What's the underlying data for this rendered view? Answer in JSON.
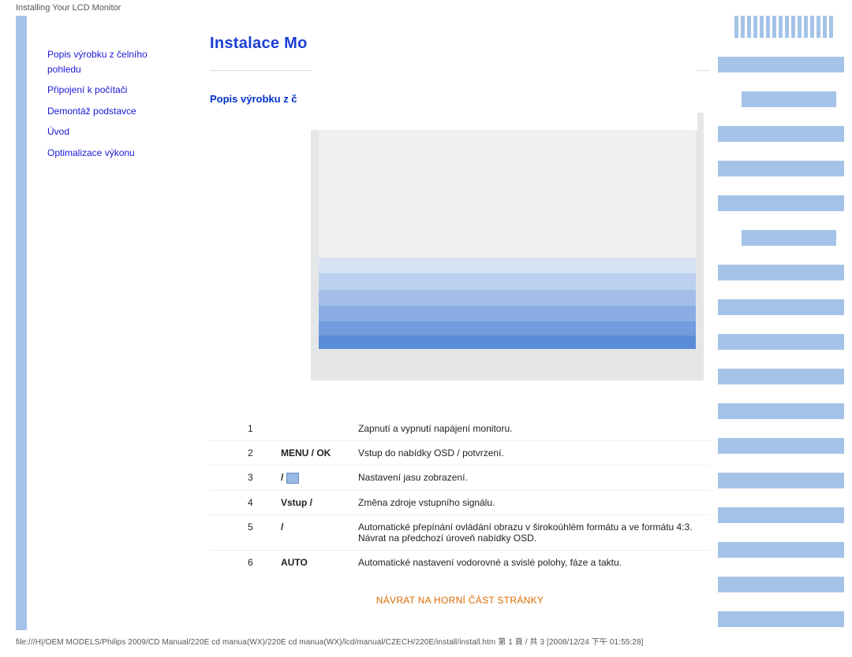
{
  "header_text": "Installing Your LCD Monitor",
  "title": "Instalace Mo",
  "subtitle": "Popis výrobku z č",
  "sidebar": {
    "items": [
      {
        "label": "Popis výrobku z čelního pohledu"
      },
      {
        "label": "Připojení k počítači"
      },
      {
        "label": "Demontáž podstavce"
      },
      {
        "label": "Úvod"
      },
      {
        "label": "Optimalizace výkonu"
      }
    ]
  },
  "monitor_preview": {
    "frame_color": "#e5e6e7",
    "screen_bg": "#f0f0f0",
    "bands": [
      "#d7e3f4",
      "#bcd1ef",
      "#a3bfe9",
      "#8aaee4",
      "#719cde",
      "#5a8cd7"
    ]
  },
  "table": {
    "rows": [
      {
        "n": "1",
        "label": "",
        "icon": "",
        "desc": "Zapnutí a vypnutí napájení monitoru."
      },
      {
        "n": "2",
        "label": "MENU / OK",
        "icon": "",
        "desc": "Vstup do nabídky OSD / potvrzení."
      },
      {
        "n": "3",
        "label": "/",
        "icon": "box",
        "desc": "Nastavení jasu zobrazení."
      },
      {
        "n": "4",
        "label": "Vstup /",
        "icon": "",
        "desc": "Změna zdroje vstupního signálu."
      },
      {
        "n": "5",
        "label": "/",
        "icon": "",
        "desc": "Automatické přepínání ovládání obrazu v širokoúhlém formátu a ve formátu 4:3.\nNávrat na předchozí úroveň nabídky OSD."
      },
      {
        "n": "6",
        "label": "AUTO",
        "icon": "",
        "desc": "Automatické nastavení vodorovné a svislé polohy, fáze a taktu."
      }
    ]
  },
  "bottom_link": "NÁVRAT NA HORNÍ ČÁST STRÁNKY",
  "footer_path": "file:///H|/OEM MODELS/Philips 2009/CD Manual/220E cd manua(WX)/220E cd manua(WX)/lcd/manual/CZECH/220E/install/install.htm 第 1 頁 / 共 3 [2008/12/24 下午 01:55:28]",
  "colors": {
    "band": "#a5c3e8",
    "link_blue": "#1a17d6",
    "title_blue": "#1a3fd6",
    "sub_blue": "#0033cc",
    "orange": "#d96b00"
  },
  "right_stripes": {
    "top_count": 16,
    "bars": [
      {
        "w": "long"
      },
      {
        "w": "short"
      },
      {
        "w": "long"
      },
      {
        "w": "long"
      },
      {
        "w": "long"
      },
      {
        "w": "short"
      },
      {
        "w": "long"
      },
      {
        "w": "long"
      },
      {
        "w": "long"
      },
      {
        "w": "long"
      },
      {
        "w": "long"
      },
      {
        "w": "long"
      },
      {
        "w": "long"
      },
      {
        "w": "long"
      },
      {
        "w": "long"
      },
      {
        "w": "long"
      },
      {
        "w": "long"
      }
    ]
  }
}
